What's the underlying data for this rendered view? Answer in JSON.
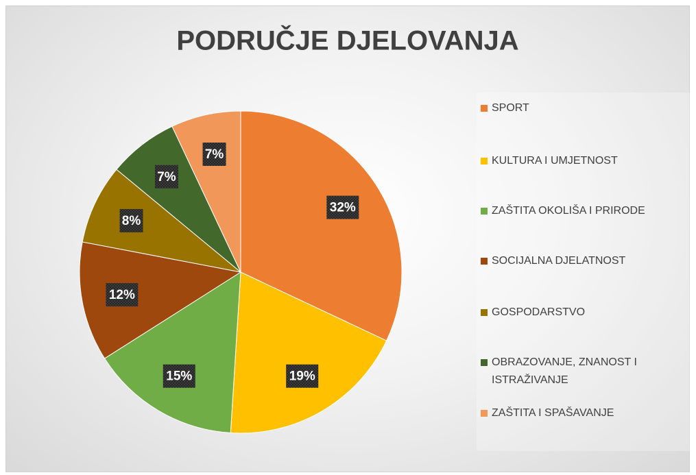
{
  "chart_data": {
    "type": "pie",
    "title": "PODRUČJE DJELOVANJA",
    "categories": [
      "SPORT",
      "KULTURA I UMJETNOST",
      "ZAŠTITA OKOLIŠA I PRIRODE",
      "SOCIJALNA DJELATNOST",
      "GOSPODARSTVO",
      "OBRAZOVANJE, ZNANOST I ISTRAŽIVANJE",
      "ZAŠTITA I SPAŠAVANJE"
    ],
    "values": [
      32,
      19,
      15,
      12,
      8,
      7,
      7
    ],
    "value_labels": [
      "32%",
      "19%",
      "15%",
      "12%",
      "8%",
      "7%",
      "7%"
    ],
    "colors": [
      "#ed7d31",
      "#ffc000",
      "#70ad47",
      "#9e480e",
      "#997300",
      "#43682b",
      "#f1975a"
    ],
    "legend": "right"
  }
}
